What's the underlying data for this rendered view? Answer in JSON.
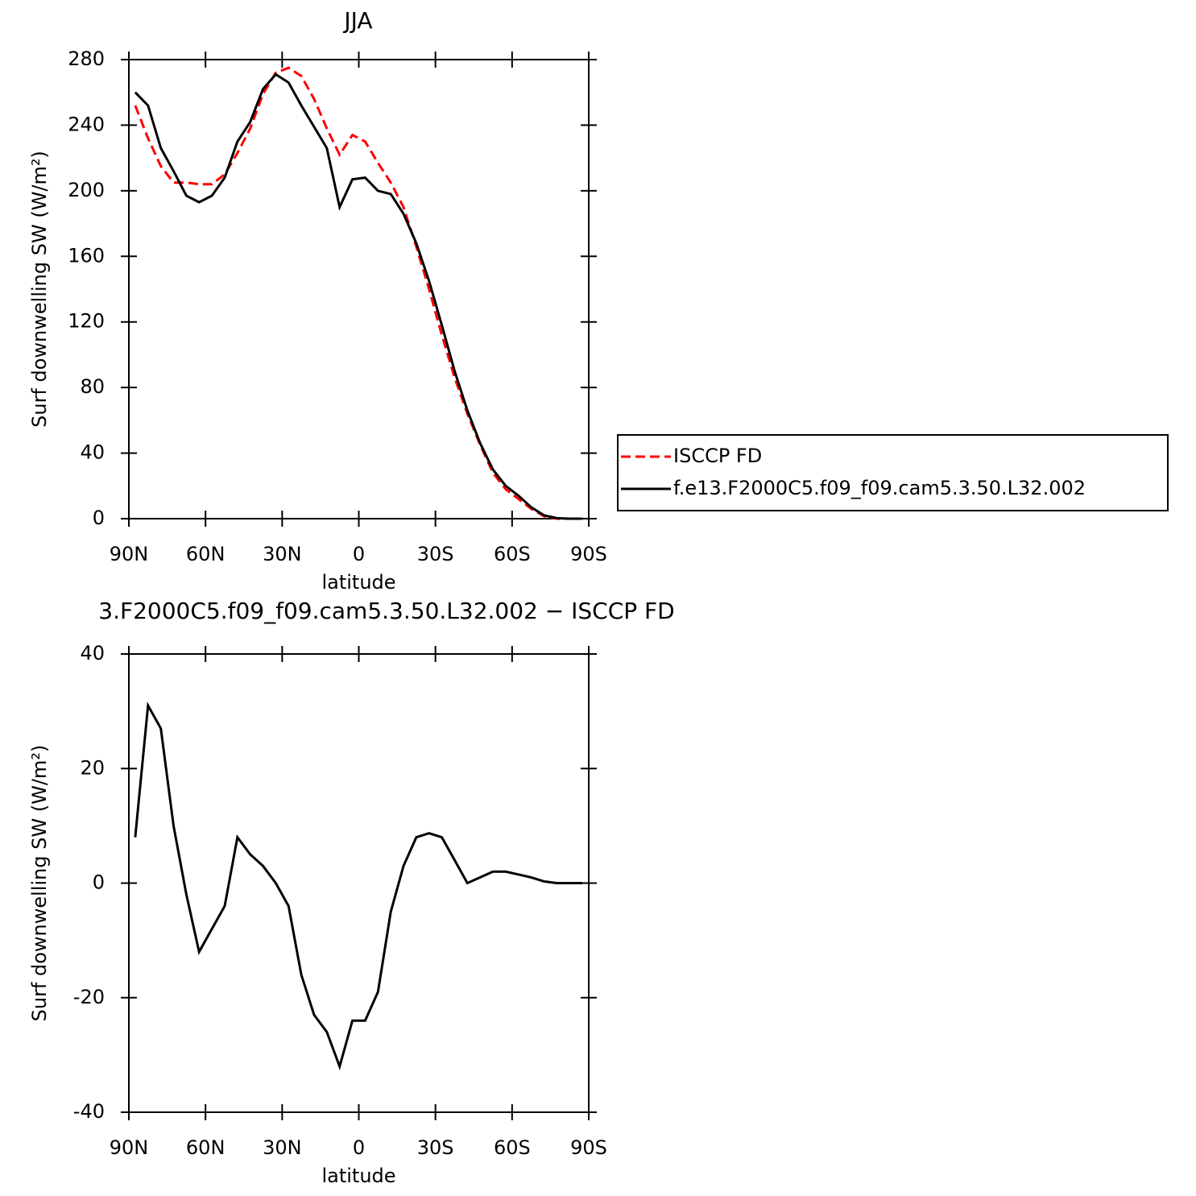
{
  "chart_data": [
    {
      "type": "line",
      "title": "JJA",
      "xlabel": "latitude",
      "ylabel": "Surf downwelling SW (W/m²)",
      "x": [
        87.5,
        82.5,
        77.5,
        72.5,
        67.5,
        62.5,
        57.5,
        52.5,
        47.5,
        42.5,
        37.5,
        32.5,
        27.5,
        22.5,
        17.5,
        12.5,
        7.5,
        2.5,
        -2.5,
        -7.5,
        -12.5,
        -17.5,
        -22.5,
        -27.5,
        -32.5,
        -37.5,
        -42.5,
        -47.5,
        -52.5,
        -57.5,
        -62.5,
        -67.5,
        -72.5,
        -77.5,
        -82.5,
        -87.5
      ],
      "series": [
        {
          "name": "ISCCP FD",
          "color": "#ff0000",
          "linestyle": "dashed",
          "values": [
            252,
            232,
            215,
            205,
            205,
            204,
            204,
            210,
            223,
            238,
            259,
            272,
            275,
            270,
            256,
            238,
            222,
            234,
            230,
            217,
            205,
            190,
            166,
            140,
            112,
            86,
            64,
            45,
            28,
            18,
            12,
            6,
            1.5,
            0,
            0,
            0
          ]
        },
        {
          "name": "f.e13.F2000C5.f09_f09.cam5.3.50.L32.002",
          "color": "#000000",
          "linestyle": "solid",
          "values": [
            260,
            252,
            226,
            212,
            197,
            193,
            197,
            208,
            230,
            242,
            262,
            271,
            266,
            252,
            239,
            226,
            190,
            207,
            208,
            200,
            198,
            186,
            168,
            145,
            118,
            90,
            66,
            46,
            30,
            20,
            14,
            7,
            2,
            0.3,
            0,
            0
          ]
        }
      ],
      "xlim": [
        90,
        -90
      ],
      "xticks": [
        {
          "value": 90,
          "label": "90N"
        },
        {
          "value": 60,
          "label": "60N"
        },
        {
          "value": 30,
          "label": "30N"
        },
        0,
        {
          "value": -30,
          "label": "30S"
        },
        {
          "value": -60,
          "label": "60S"
        },
        {
          "value": -90,
          "label": "90S"
        }
      ],
      "ylim": [
        0,
        280
      ],
      "yticks": [
        0,
        40,
        80,
        120,
        160,
        200,
        240,
        280
      ],
      "legend": "right"
    },
    {
      "type": "line",
      "title": "3.F2000C5.f09_f09.cam5.3.50.L32.002 − ISCCP FD",
      "xlabel": "latitude",
      "ylabel": "Surf downwelling SW (W/m²)",
      "x": [
        87.5,
        82.5,
        77.5,
        72.5,
        67.5,
        62.5,
        57.5,
        52.5,
        47.5,
        42.5,
        37.5,
        32.5,
        27.5,
        22.5,
        17.5,
        12.5,
        7.5,
        2.5,
        -2.5,
        -7.5,
        -12.5,
        -17.5,
        -22.5,
        -27.5,
        -32.5,
        -37.5,
        -42.5,
        -47.5,
        -52.5,
        -57.5,
        -62.5,
        -67.5,
        -72.5,
        -77.5,
        -82.5,
        -87.5
      ],
      "series": [
        {
          "color": "#000000",
          "linestyle": "solid",
          "values": [
            8,
            31,
            27,
            10,
            -2,
            -12,
            -8,
            -4,
            8,
            5,
            3,
            0,
            -4,
            -16,
            -23,
            -26,
            -32,
            -24,
            -24,
            -19,
            -5,
            3,
            8,
            8.7,
            8,
            4,
            0,
            1,
            2,
            2,
            1.5,
            1,
            0.3,
            0,
            0,
            0
          ]
        }
      ],
      "xlim": [
        90,
        -90
      ],
      "xticks": [
        {
          "value": 90,
          "label": "90N"
        },
        {
          "value": 60,
          "label": "60N"
        },
        {
          "value": 30,
          "label": "30N"
        },
        0,
        {
          "value": -30,
          "label": "30S"
        },
        {
          "value": -60,
          "label": "60S"
        },
        {
          "value": -90,
          "label": "90S"
        }
      ],
      "ylim": [
        -40,
        40
      ],
      "yticks": [
        -40,
        -20,
        0,
        20,
        40
      ]
    }
  ]
}
